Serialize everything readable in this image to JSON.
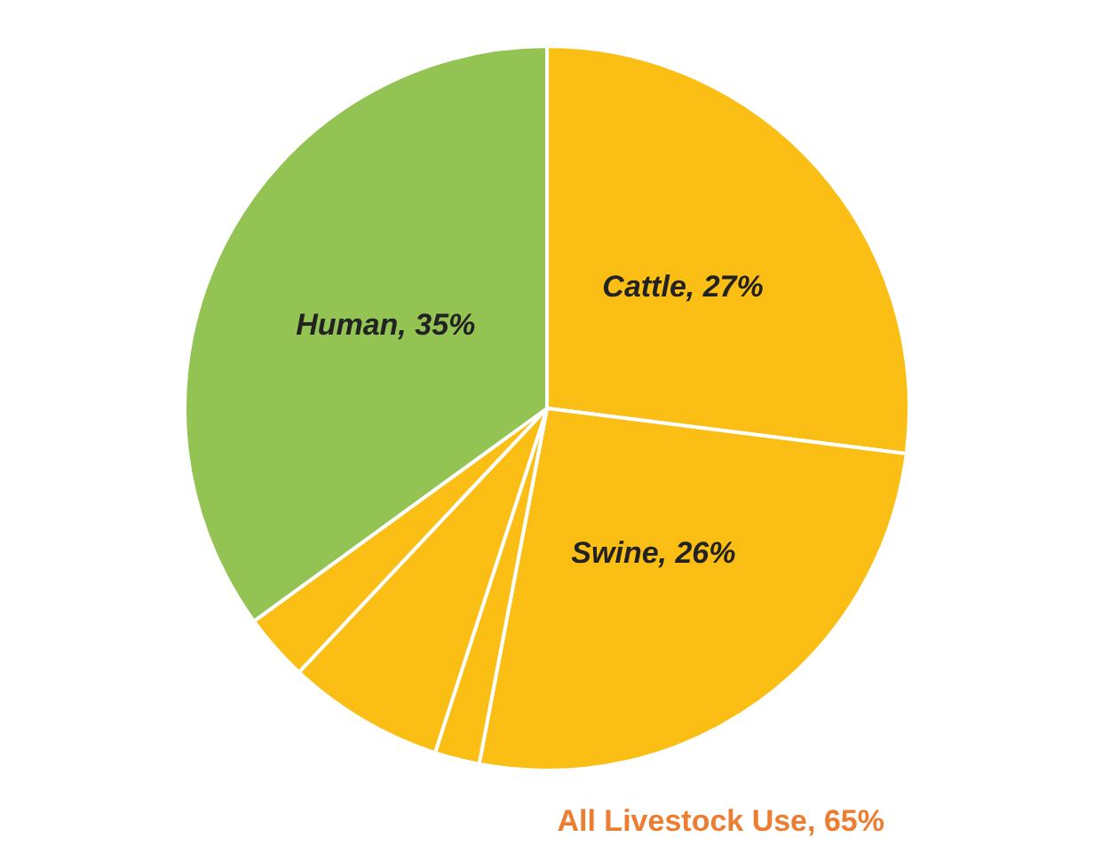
{
  "chart_data": {
    "type": "pie",
    "categories": [
      "Cattle",
      "Swine",
      null,
      null,
      null,
      "Human"
    ],
    "values": [
      27,
      26,
      2,
      7,
      3,
      35
    ],
    "value_labels": [
      "27%",
      "26%",
      null,
      null,
      null,
      "35%"
    ],
    "colors": [
      "#fbbe14",
      "#fbbe14",
      "#fbbe14",
      "#fbbe14",
      "#fbbe14",
      "#92c353"
    ],
    "annotations": [
      "All Livestock Use, 65%"
    ],
    "legend": false
  }
}
